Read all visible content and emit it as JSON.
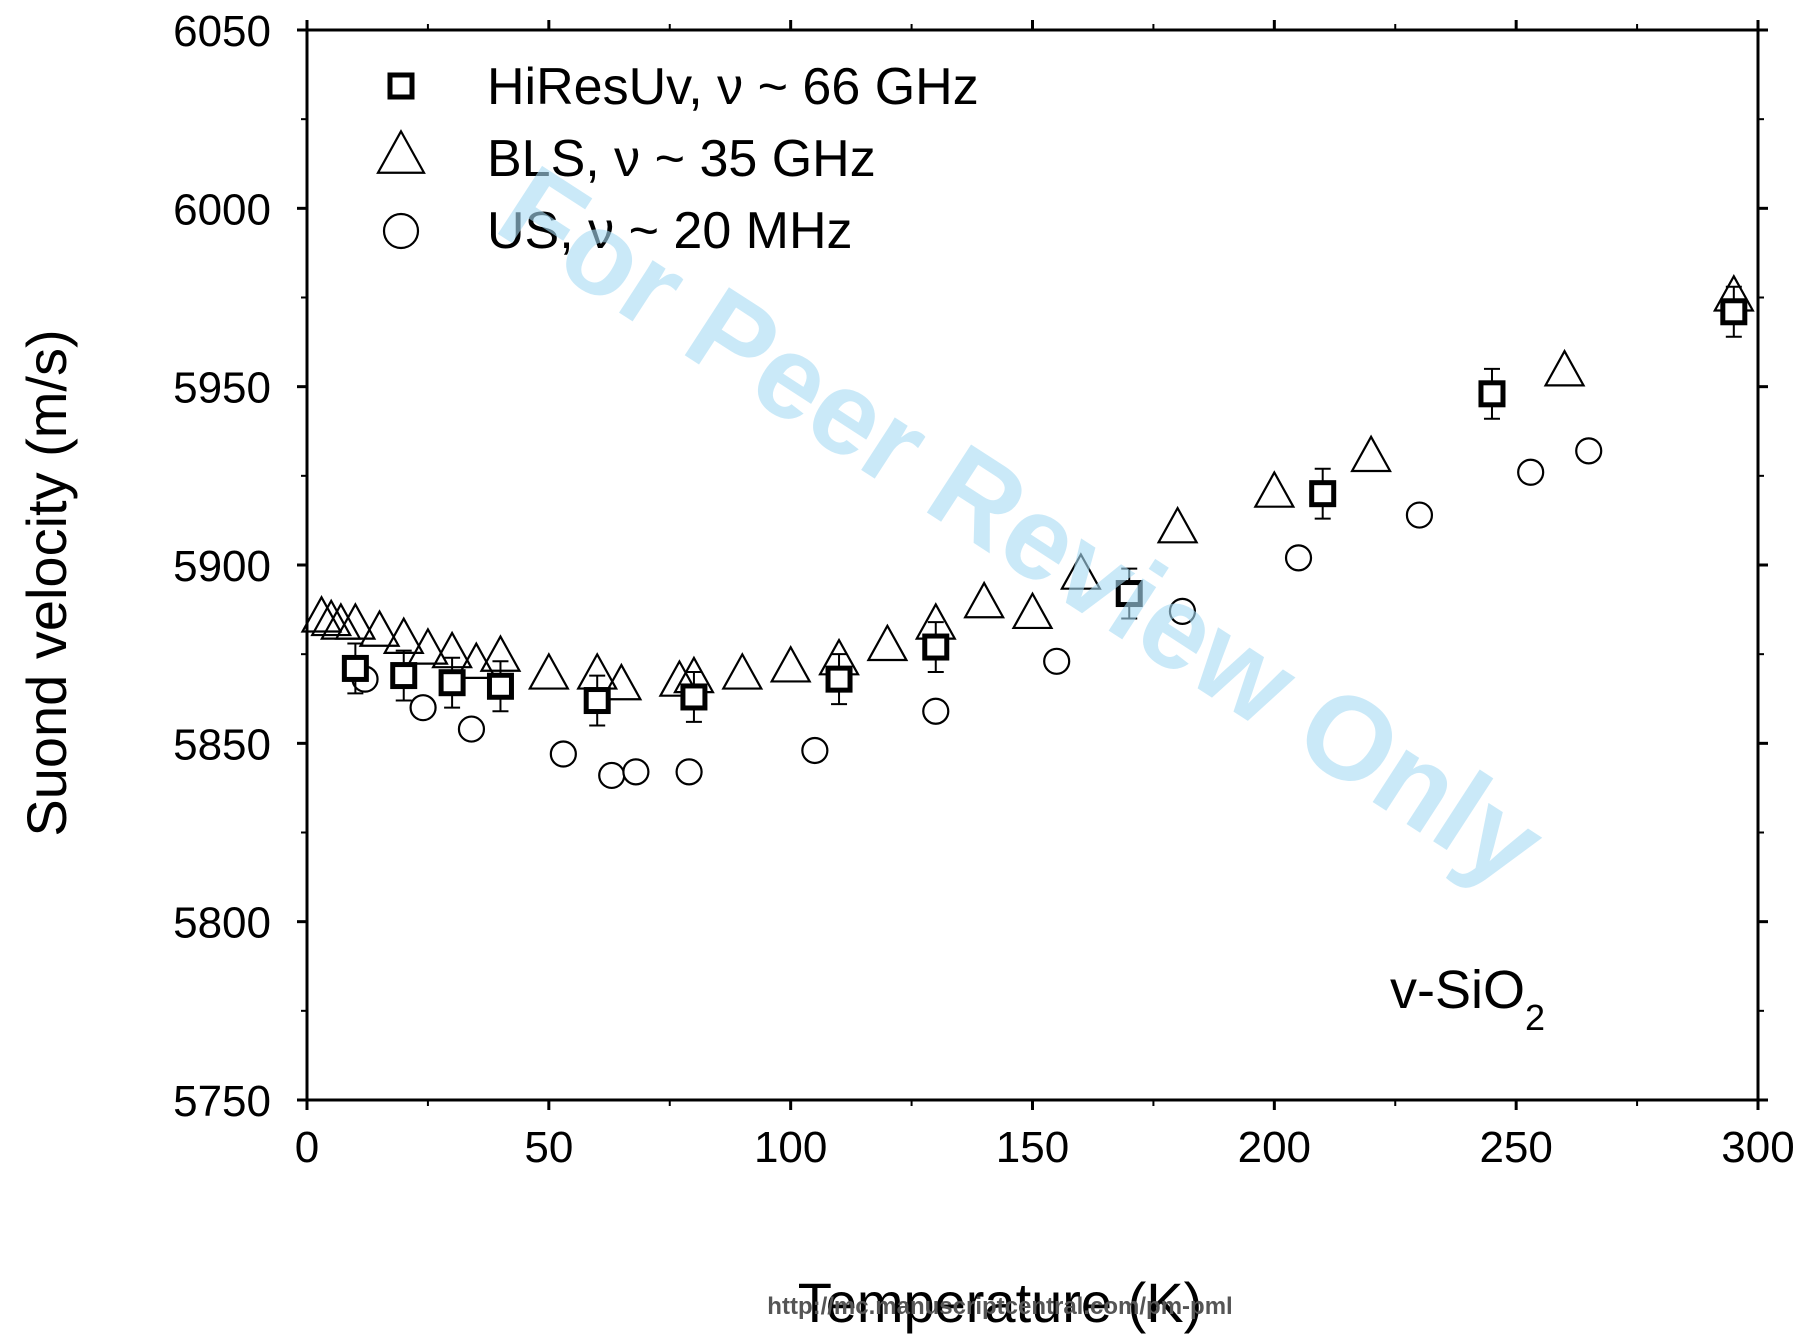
{
  "chart_data": {
    "type": "scatter",
    "title": "",
    "xlabel": "Temperature (K)",
    "ylabel": "Suond velocity (m/s)",
    "xlim": [
      0,
      300
    ],
    "ylim": [
      5750,
      6050
    ],
    "x_ticks": [
      0,
      50,
      100,
      150,
      200,
      250,
      300
    ],
    "y_ticks": [
      5750,
      5800,
      5850,
      5900,
      5950,
      6000,
      6050
    ],
    "grid": false,
    "legend_position": "top-left",
    "annotation": {
      "main": "v-SiO",
      "subscript": "2"
    },
    "series": [
      {
        "name": "HiResUv, ν ~ 66 GHz",
        "marker": "square",
        "error_bar": 7,
        "x": [
          10,
          20,
          30,
          40,
          60,
          80,
          110,
          130,
          170,
          210,
          245,
          295
        ],
        "y": [
          5871,
          5869,
          5867,
          5866,
          5862,
          5863,
          5868,
          5877,
          5892,
          5920,
          5948,
          5971
        ]
      },
      {
        "name": "BLS, ν ~ 35 GHz",
        "marker": "triangle",
        "x": [
          3,
          5,
          7,
          10,
          15,
          20,
          25,
          30,
          35,
          40,
          50,
          60,
          65,
          77,
          80,
          90,
          100,
          110,
          120,
          130,
          140,
          150,
          160,
          180,
          200,
          220,
          260,
          295
        ],
        "y": [
          5885,
          5884,
          5883,
          5883,
          5881,
          5879,
          5876,
          5875,
          5872,
          5874,
          5869,
          5869,
          5866,
          5867,
          5868,
          5869,
          5871,
          5873,
          5877,
          5883,
          5889,
          5886,
          5897,
          5910,
          5920,
          5930,
          5954,
          5975
        ]
      },
      {
        "name": "US, ν ~ 20 MHz",
        "marker": "circle",
        "x": [
          12,
          24,
          34,
          53,
          63,
          68,
          79,
          105,
          130,
          155,
          181,
          205,
          230,
          253,
          265
        ],
        "y": [
          5868,
          5860,
          5854,
          5847,
          5841,
          5842,
          5842,
          5848,
          5859,
          5873,
          5887,
          5902,
          5914,
          5926,
          5932
        ]
      }
    ]
  },
  "watermark": "For Peer Review Only",
  "footer_url": "http://mc.manuscriptcentral.com/pm-pml"
}
